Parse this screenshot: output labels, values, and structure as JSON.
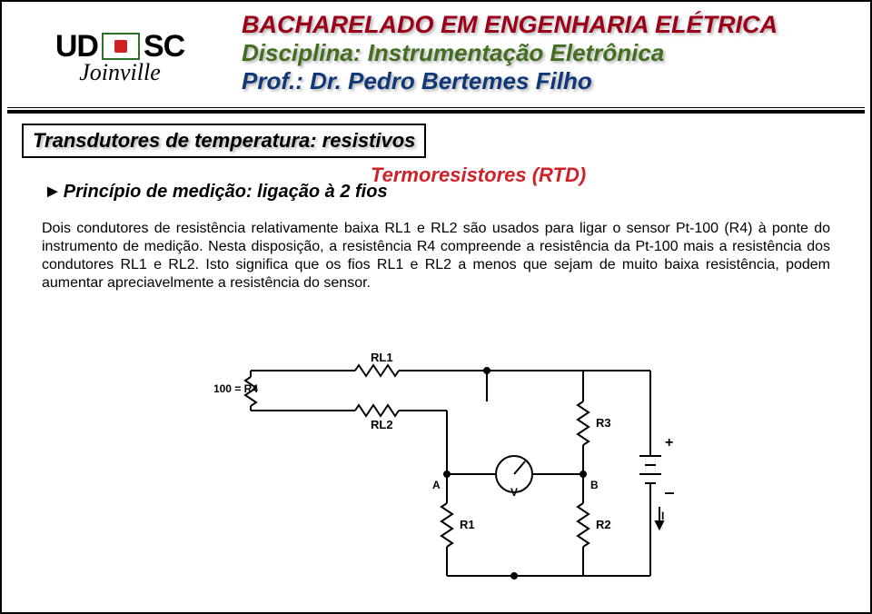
{
  "logo": {
    "name": "UDESC",
    "sub": "Joinville"
  },
  "header": {
    "line1": "BACHARELADO EM ENGENHARIA ELÉTRICA",
    "line2": "Disciplina: Instrumentação Eletrônica",
    "line3": "Prof.: Dr. Pedro Bertemes Filho"
  },
  "section_title": "Transdutores de temperatura: resistivos",
  "rtd_title": "Termoresistores (RTD)",
  "subhead": {
    "marker": "►",
    "text": "Princípio de medição: ligação à 2 fios"
  },
  "paragraph": "Dois condutores de resistência relativamente baixa RL1 e RL2 são usados para ligar o sensor Pt-100 (R4) à ponte do instrumento de medição. Nesta disposição, a resistência R4 compreende a resistência da Pt-100 mais a resistência dos condutores RL1 e RL2. Isto significa que os fios RL1 e RL2 a menos que sejam de muito baixa resistência, podem aumentar apreciavelmente a resistência do sensor.",
  "diagram": {
    "labels": {
      "rl1": "RL1",
      "rl2": "RL2",
      "pt100": "Pt 100 = R4",
      "r1": "R1",
      "r2": "R2",
      "r3": "R3",
      "a": "A",
      "b": "B",
      "v": "V",
      "i": "I",
      "plus": "+",
      "minus": "‒"
    },
    "colors": {
      "stroke": "#000000",
      "bg": "#ffffff"
    }
  }
}
